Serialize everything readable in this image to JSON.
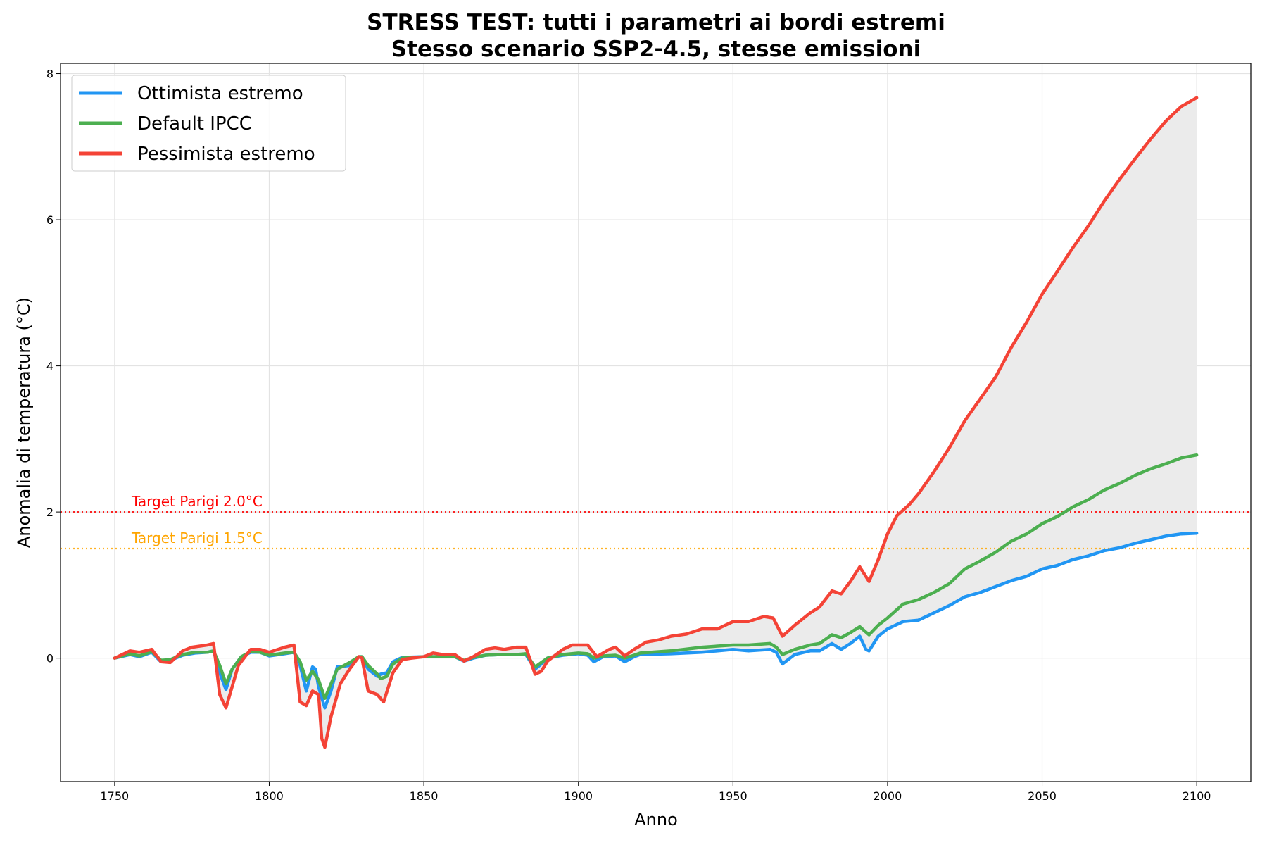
{
  "chart_data": {
    "type": "line",
    "title": "STRESS TEST: tutti i parametri ai bordi estremi",
    "subtitle": "Stesso scenario SSP2-4.5, stesse emissioni",
    "xlabel": "Anno",
    "ylabel": "Anomalia di temperatura (°C)",
    "xlim": [
      1732.5,
      2117.5
    ],
    "ylim": [
      -1.69,
      8.14
    ],
    "xticks": [
      1750,
      1800,
      1850,
      1900,
      1950,
      2000,
      2050,
      2100
    ],
    "yticks": [
      0,
      2,
      4,
      6,
      8
    ],
    "grid": true,
    "legend_position": "top-left",
    "fill_between": {
      "lower": "Ottimista estremo",
      "upper": "Pessimista estremo",
      "color": "#ebebeb"
    },
    "reference_lines": [
      {
        "y": 2.0,
        "label": "Target Parigi 2.0°C",
        "color": "#ff0000",
        "style": "dotted"
      },
      {
        "y": 1.5,
        "label": "Target Parigi 1.5°C",
        "color": "#ffa500",
        "style": "dotted"
      }
    ],
    "series": [
      {
        "name": "Ottimista estremo",
        "color": "#2196F3",
        "x": [
          1750,
          1755,
          1758,
          1762,
          1765,
          1768,
          1772,
          1776,
          1780,
          1782,
          1784,
          1786,
          1788,
          1791,
          1794,
          1797,
          1800,
          1805,
          1808,
          1810,
          1812,
          1814,
          1815,
          1816,
          1818,
          1820,
          1822,
          1826,
          1829,
          1830,
          1832,
          1835,
          1836,
          1838,
          1840,
          1843,
          1850,
          1855,
          1860,
          1863,
          1866,
          1870,
          1875,
          1880,
          1883,
          1886,
          1888,
          1890,
          1895,
          1900,
          1903,
          1905,
          1908,
          1912,
          1915,
          1918,
          1920,
          1930,
          1940,
          1950,
          1955,
          1962,
          1964,
          1966,
          1970,
          1975,
          1978,
          1982,
          1985,
          1988,
          1991,
          1993,
          1994,
          1997,
          2000,
          2005,
          2010,
          2015,
          2020,
          2025,
          2030,
          2035,
          2040,
          2045,
          2050,
          2055,
          2060,
          2065,
          2070,
          2075,
          2080,
          2085,
          2090,
          2095,
          2100
        ],
        "y": [
          0,
          0.05,
          0.02,
          0.08,
          -0.05,
          -0.03,
          0.04,
          0.07,
          0.08,
          0.1,
          -0.2,
          -0.43,
          -0.15,
          0.02,
          0.08,
          0.08,
          0.03,
          0.06,
          0.08,
          -0.1,
          -0.45,
          -0.12,
          -0.15,
          -0.4,
          -0.68,
          -0.45,
          -0.12,
          -0.1,
          0.02,
          0.02,
          -0.15,
          -0.25,
          -0.22,
          -0.2,
          -0.05,
          0.01,
          0.02,
          0.02,
          0.02,
          -0.04,
          0,
          0.04,
          0.05,
          0.05,
          0.05,
          -0.15,
          -0.08,
          0,
          0.04,
          0.06,
          0.04,
          -0.05,
          0.02,
          0.03,
          -0.05,
          0.02,
          0.05,
          0.06,
          0.08,
          0.12,
          0.1,
          0.12,
          0.08,
          -0.08,
          0.05,
          0.1,
          0.1,
          0.2,
          0.12,
          0.2,
          0.3,
          0.12,
          0.1,
          0.3,
          0.4,
          0.5,
          0.52,
          0.62,
          0.72,
          0.84,
          0.9,
          0.98,
          1.06,
          1.12,
          1.22,
          1.27,
          1.35,
          1.4,
          1.47,
          1.51,
          1.57,
          1.62,
          1.67,
          1.7,
          1.71
        ]
      },
      {
        "name": "Default IPCC",
        "color": "#4CAF50",
        "x": [
          1750,
          1755,
          1758,
          1762,
          1765,
          1768,
          1772,
          1776,
          1780,
          1782,
          1784,
          1786,
          1788,
          1791,
          1794,
          1797,
          1800,
          1805,
          1808,
          1810,
          1812,
          1814,
          1816,
          1818,
          1820,
          1822,
          1826,
          1829,
          1830,
          1832,
          1835,
          1836,
          1838,
          1840,
          1843,
          1850,
          1855,
          1860,
          1863,
          1866,
          1870,
          1875,
          1880,
          1883,
          1886,
          1888,
          1890,
          1895,
          1900,
          1903,
          1905,
          1908,
          1912,
          1915,
          1918,
          1920,
          1930,
          1940,
          1950,
          1955,
          1962,
          1964,
          1966,
          1970,
          1975,
          1978,
          1982,
          1985,
          1988,
          1991,
          1994,
          1997,
          2000,
          2005,
          2010,
          2015,
          2020,
          2025,
          2030,
          2035,
          2040,
          2045,
          2050,
          2055,
          2060,
          2065,
          2070,
          2075,
          2080,
          2085,
          2090,
          2095,
          2100
        ],
        "y": [
          0,
          0.06,
          0.03,
          0.09,
          -0.03,
          -0.02,
          0.05,
          0.08,
          0.08,
          0.1,
          -0.1,
          -0.35,
          -0.15,
          0.02,
          0.09,
          0.08,
          0.04,
          0.07,
          0.08,
          -0.05,
          -0.3,
          -0.18,
          -0.3,
          -0.55,
          -0.35,
          -0.15,
          -0.06,
          0.02,
          0.02,
          -0.1,
          -0.22,
          -0.28,
          -0.25,
          -0.08,
          0,
          0.02,
          0.02,
          0.02,
          -0.03,
          0.01,
          0.04,
          0.05,
          0.05,
          0.06,
          -0.12,
          -0.06,
          0,
          0.05,
          0.07,
          0.06,
          0,
          0.03,
          0.04,
          0,
          0.04,
          0.07,
          0.1,
          0.15,
          0.18,
          0.18,
          0.2,
          0.15,
          0.05,
          0.12,
          0.18,
          0.2,
          0.32,
          0.28,
          0.35,
          0.43,
          0.32,
          0.45,
          0.55,
          0.74,
          0.8,
          0.9,
          1.02,
          1.22,
          1.33,
          1.45,
          1.6,
          1.7,
          1.84,
          1.94,
          2.07,
          2.17,
          2.3,
          2.39,
          2.5,
          2.59,
          2.66,
          2.74,
          2.78
        ]
      },
      {
        "name": "Pessimista estremo",
        "color": "#F44336",
        "x": [
          1750,
          1755,
          1758,
          1762,
          1765,
          1768,
          1772,
          1775,
          1780,
          1782,
          1784,
          1786,
          1790,
          1794,
          1797,
          1800,
          1805,
          1808,
          1810,
          1812,
          1814,
          1816,
          1817,
          1818,
          1820,
          1823,
          1826,
          1829,
          1830,
          1832,
          1835,
          1837,
          1840,
          1843,
          1846,
          1850,
          1853,
          1856,
          1860,
          1863,
          1866,
          1870,
          1873,
          1876,
          1880,
          1883,
          1886,
          1888,
          1890,
          1895,
          1898,
          1903,
          1906,
          1910,
          1912,
          1915,
          1918,
          1922,
          1926,
          1930,
          1935,
          1940,
          1945,
          1950,
          1955,
          1960,
          1963,
          1966,
          1970,
          1975,
          1978,
          1982,
          1985,
          1988,
          1991,
          1994,
          1997,
          2000,
          2003,
          2007,
          2010,
          2015,
          2020,
          2025,
          2030,
          2035,
          2040,
          2045,
          2050,
          2055,
          2060,
          2065,
          2070,
          2075,
          2080,
          2085,
          2090,
          2095,
          2100
        ],
        "y": [
          0,
          0.1,
          0.08,
          0.12,
          -0.05,
          -0.06,
          0.1,
          0.15,
          0.18,
          0.2,
          -0.5,
          -0.68,
          -0.1,
          0.12,
          0.12,
          0.08,
          0.15,
          0.18,
          -0.6,
          -0.65,
          -0.45,
          -0.5,
          -1.1,
          -1.22,
          -0.8,
          -0.35,
          -0.15,
          0.02,
          0,
          -0.45,
          -0.5,
          -0.6,
          -0.2,
          -0.02,
          0,
          0.02,
          0.07,
          0.05,
          0.05,
          -0.04,
          0.02,
          0.12,
          0.14,
          0.12,
          0.15,
          0.15,
          -0.22,
          -0.18,
          -0.04,
          0.12,
          0.18,
          0.18,
          0.02,
          0.12,
          0.15,
          0.03,
          0.12,
          0.22,
          0.25,
          0.3,
          0.33,
          0.4,
          0.4,
          0.5,
          0.5,
          0.57,
          0.55,
          0.3,
          0.45,
          0.62,
          0.7,
          0.92,
          0.88,
          1.05,
          1.25,
          1.05,
          1.35,
          1.7,
          1.95,
          2.1,
          2.25,
          2.55,
          2.88,
          3.25,
          3.55,
          3.85,
          4.25,
          4.6,
          4.98,
          5.3,
          5.62,
          5.92,
          6.25,
          6.55,
          6.83,
          7.1,
          7.35,
          7.55,
          7.67
        ]
      }
    ]
  }
}
